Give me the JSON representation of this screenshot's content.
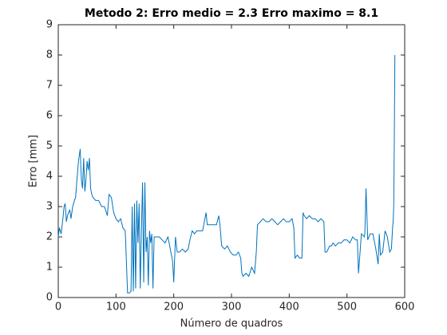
{
  "chart_data": {
    "type": "line",
    "title": "Metodo 2: Erro medio = 2.3 Erro maximo = 8.1",
    "xlabel": "Número de quadros",
    "ylabel": "Erro [mm]",
    "xlim": [
      0,
      600
    ],
    "xticks": [
      0,
      100,
      200,
      300,
      400,
      500,
      600
    ],
    "ylim": [
      0,
      9
    ],
    "yticks": [
      0,
      1,
      2,
      3,
      4,
      5,
      6,
      7,
      8,
      9
    ],
    "grid": false,
    "x": [
      0,
      2,
      5,
      8,
      10,
      12,
      14,
      16,
      18,
      20,
      22,
      25,
      28,
      30,
      32,
      35,
      38,
      40,
      42,
      44,
      46,
      48,
      50,
      52,
      54,
      56,
      58,
      60,
      65,
      70,
      75,
      80,
      85,
      88,
      92,
      96,
      100,
      104,
      108,
      112,
      116,
      120,
      123,
      126,
      128,
      130,
      132,
      134,
      136,
      138,
      140,
      142,
      144,
      146,
      148,
      150,
      152,
      154,
      156,
      158,
      160,
      162,
      164,
      166,
      170,
      175,
      180,
      185,
      190,
      194,
      198,
      200,
      203,
      206,
      210,
      215,
      220,
      225,
      228,
      232,
      236,
      240,
      245,
      250,
      253,
      256,
      258,
      262,
      268,
      274,
      278,
      280,
      283,
      288,
      293,
      298,
      303,
      308,
      312,
      316,
      318,
      320,
      325,
      330,
      335,
      340,
      343,
      345,
      350,
      355,
      360,
      365,
      370,
      375,
      380,
      385,
      390,
      395,
      400,
      405,
      408,
      410,
      414,
      418,
      422,
      424,
      426,
      430,
      435,
      440,
      445,
      450,
      455,
      460,
      462,
      465,
      470,
      473,
      476,
      480,
      485,
      490,
      495,
      500,
      505,
      510,
      515,
      518,
      520,
      525,
      530,
      531,
      533,
      536,
      540,
      545,
      550,
      554,
      556,
      558,
      562,
      566,
      570,
      574,
      577,
      579,
      580,
      581,
      582,
      583
    ],
    "series": [
      {
        "name": "Erro",
        "color": "#0072bd",
        "values": [
          2.0,
          2.3,
          2.1,
          2.6,
          3.0,
          3.1,
          2.5,
          2.7,
          2.8,
          2.9,
          2.6,
          3.0,
          3.2,
          3.3,
          3.8,
          4.5,
          4.9,
          3.9,
          3.6,
          4.6,
          3.5,
          3.9,
          4.5,
          4.2,
          4.6,
          3.6,
          3.4,
          3.3,
          3.2,
          3.2,
          3.0,
          3.0,
          2.7,
          3.4,
          3.3,
          2.8,
          2.6,
          2.5,
          2.6,
          2.3,
          2.2,
          0.15,
          0.15,
          0.2,
          3.0,
          0.2,
          3.1,
          0.3,
          3.2,
          1.8,
          3.1,
          0.3,
          2.2,
          3.8,
          0.5,
          3.8,
          1.5,
          2.0,
          0.4,
          2.2,
          1.8,
          2.1,
          0.3,
          2.0,
          2.0,
          2.0,
          1.9,
          1.8,
          2.0,
          1.6,
          1.2,
          0.5,
          2.0,
          1.5,
          1.5,
          1.6,
          1.5,
          1.6,
          1.9,
          2.2,
          2.1,
          2.2,
          2.2,
          2.2,
          2.5,
          2.8,
          2.4,
          2.4,
          2.4,
          2.4,
          2.7,
          2.4,
          1.7,
          1.6,
          1.7,
          1.5,
          1.4,
          1.4,
          1.5,
          1.3,
          0.8,
          0.7,
          0.8,
          0.7,
          1.0,
          0.8,
          1.5,
          2.4,
          2.5,
          2.6,
          2.5,
          2.5,
          2.6,
          2.5,
          2.4,
          2.5,
          2.6,
          2.5,
          2.5,
          2.6,
          2.3,
          1.3,
          1.4,
          1.3,
          1.3,
          2.8,
          2.7,
          2.6,
          2.7,
          2.6,
          2.6,
          2.5,
          2.6,
          2.5,
          1.5,
          1.5,
          1.7,
          1.7,
          1.8,
          1.7,
          1.8,
          1.8,
          1.9,
          1.9,
          1.8,
          2.0,
          1.9,
          1.9,
          0.8,
          2.1,
          2.0,
          2.1,
          3.6,
          1.9,
          2.1,
          2.1,
          1.6,
          1.1,
          2.1,
          1.4,
          1.5,
          2.2,
          2.0,
          1.5,
          1.6,
          2.3,
          2.5,
          3.0,
          5.2,
          8.0
        ]
      }
    ]
  }
}
